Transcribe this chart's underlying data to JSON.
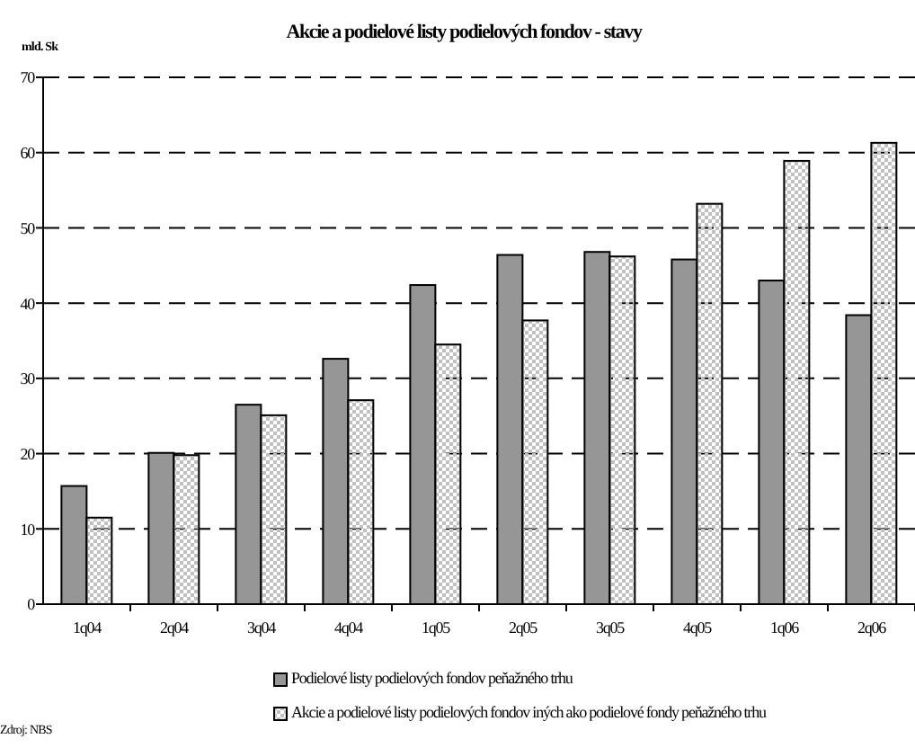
{
  "chart_data": {
    "type": "bar",
    "title": "Akcie a podielové listy podielových fondov - stavy",
    "ylabel": "mld. Sk",
    "categories": [
      "1q04",
      "2q04",
      "3q04",
      "4q04",
      "1q05",
      "2q05",
      "3q05",
      "4q05",
      "1q06",
      "2q06"
    ],
    "series": [
      {
        "name": "Podielové listy podielových fondov peňažného trhu",
        "color": "#969696",
        "values": [
          15.7,
          20.1,
          26.5,
          32.6,
          42.4,
          46.4,
          46.8,
          45.8,
          43.0,
          38.4
        ]
      },
      {
        "name": "Akcie a podielové listy podielových fondov iných ako podielové fondy peňažného trhu",
        "color": "#c0c0c0",
        "values": [
          11.5,
          19.8,
          25.1,
          27.1,
          34.5,
          37.7,
          46.2,
          53.2,
          58.9,
          61.3
        ]
      }
    ],
    "ylim": [
      0,
      70
    ],
    "yticks": [
      0,
      10,
      20,
      30,
      40,
      50,
      60,
      70
    ],
    "grid": "y",
    "legend": "bottom",
    "annotations": [
      "Zdroj: NBS"
    ]
  }
}
